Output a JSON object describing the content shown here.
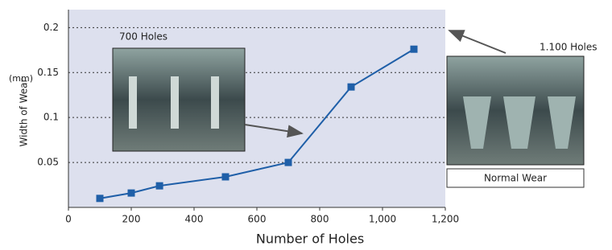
{
  "chart_data": {
    "type": "line",
    "x_label": "Number of Holes",
    "y_label": "Width of Wear",
    "y_unit": "(mm)",
    "x": [
      100,
      200,
      290,
      500,
      700,
      900,
      1100
    ],
    "series": [
      {
        "name": "Width of Wear",
        "color": "#1f5fa8",
        "values": [
          0.01,
          0.016,
          0.024,
          0.034,
          0.05,
          0.134,
          0.176
        ]
      }
    ],
    "xlim": [
      0,
      1200
    ],
    "xticks": [
      0,
      200,
      400,
      600,
      800,
      {
        "value": 1000,
        "label": "1,000"
      },
      {
        "value": 1200,
        "label": "1,200"
      }
    ],
    "ylim": [
      0,
      0.22
    ],
    "yticks": [
      0.05,
      0.1,
      0.15,
      0.2
    ],
    "grid": true,
    "annotations": [
      "700 Holes",
      "1.100 Holes",
      "Normal Wear"
    ]
  }
}
